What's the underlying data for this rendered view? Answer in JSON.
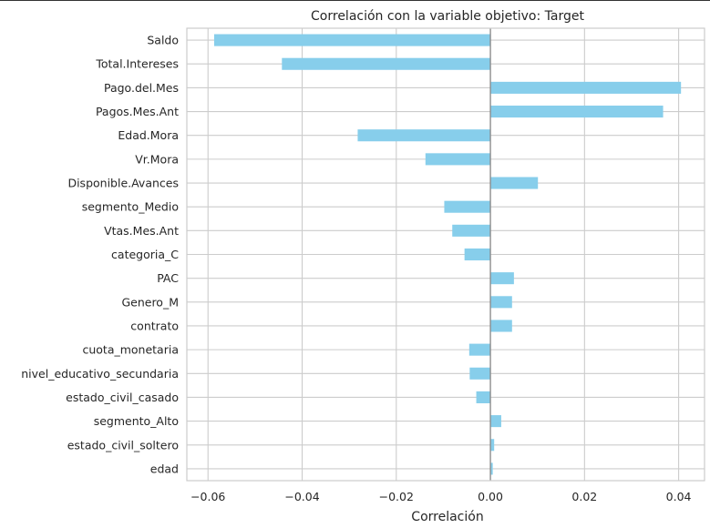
{
  "chart_data": {
    "type": "bar",
    "orientation": "horizontal",
    "title": "Correlación con la variable objetivo: Target",
    "xlabel": "Correlación",
    "ylabel": "",
    "xlim": [
      -0.0645,
      0.0455
    ],
    "xticks": [
      -0.06,
      -0.04,
      -0.02,
      0.0,
      0.02,
      0.04
    ],
    "xtick_labels": [
      "−0.06",
      "−0.04",
      "−0.02",
      "0.00",
      "0.02",
      "0.04"
    ],
    "grid": true,
    "zero_line": true,
    "bar_color": "#87CEEB",
    "categories": [
      "Saldo",
      "Total.Intereses",
      "Pago.del.Mes",
      "Pagos.Mes.Ant",
      "Edad.Mora",
      "Vr.Mora",
      "Disponible.Avances",
      "segmento_Medio",
      "Vtas.Mes.Ant",
      "categoria_C",
      "PAC",
      "Genero_M",
      "contrato",
      "cuota_monetaria",
      "nivel_educativo_secundaria",
      "estado_civil_casado",
      "segmento_Alto",
      "estado_civil_soltero",
      "edad"
    ],
    "values": [
      -0.0587,
      -0.0443,
      0.0405,
      0.0367,
      -0.0282,
      -0.0138,
      0.0101,
      -0.0098,
      -0.0081,
      -0.0055,
      0.005,
      0.0046,
      0.0046,
      -0.0045,
      -0.0044,
      -0.003,
      0.0023,
      0.0008,
      0.0005
    ]
  }
}
